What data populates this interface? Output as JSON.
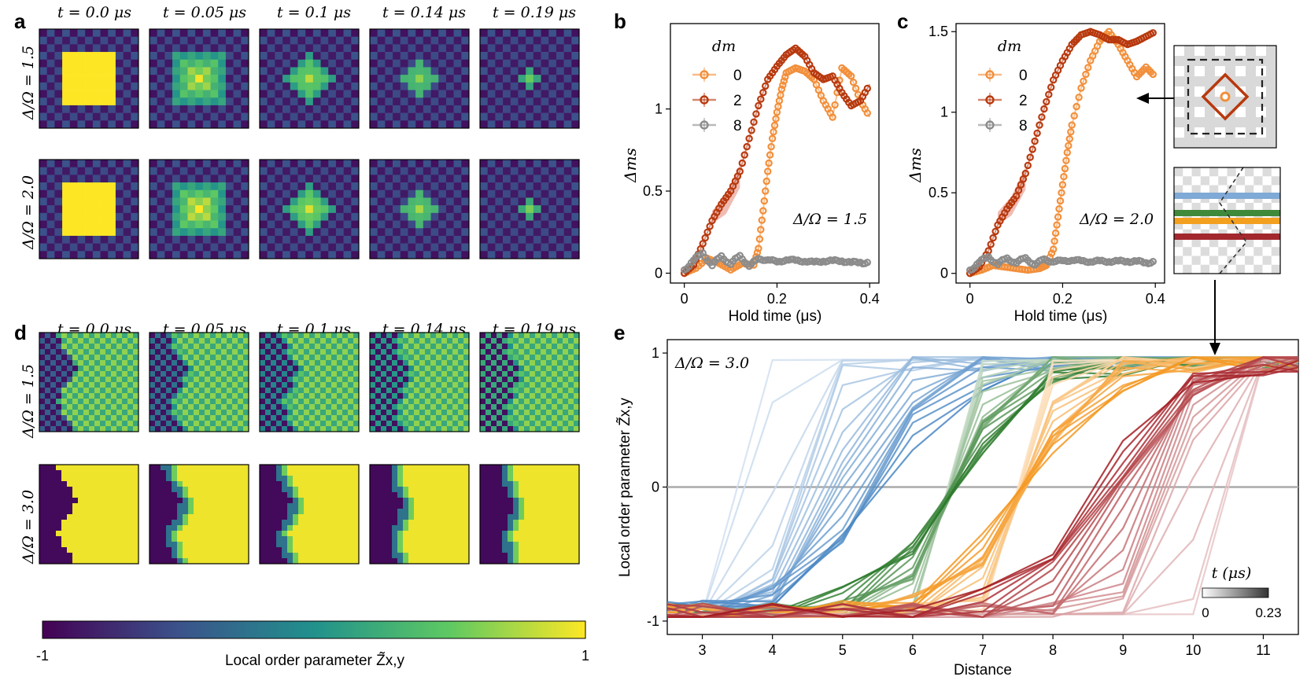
{
  "panel_labels": {
    "a": "a",
    "b": "b",
    "c": "c",
    "d": "d",
    "e": "e"
  },
  "time_labels": [
    "t = 0.0 μs",
    "t = 0.05 μs",
    "t = 0.1 μs",
    "t = 0.14 μs",
    "t = 0.19 μs"
  ],
  "panel_a": {
    "row_labels": [
      "Δ/Ω = 1.5",
      "Δ/Ω = 2.0"
    ]
  },
  "panel_d": {
    "row_labels": [
      "Δ/Ω = 1.5",
      "Δ/Ω = 3.0"
    ]
  },
  "colorbar": {
    "min_label": "-1",
    "max_label": "1",
    "label": "Local order parameter Z̃x,y",
    "colors": [
      "#440154",
      "#3b528b",
      "#21918c",
      "#5ec962",
      "#fde725"
    ]
  },
  "legend": {
    "title": "dm",
    "entries": [
      "0",
      "2",
      "8"
    ],
    "colors": [
      "#f28f3b",
      "#b8390e",
      "#8c8c8c"
    ]
  },
  "inset_arrow_colors": [
    "#7fa9d6",
    "#3f8a3a",
    "#f3a020",
    "#a2282e"
  ],
  "chart_data": [
    {
      "id": "b",
      "type": "line",
      "xlabel": "Hold time (μs)",
      "ylabel": "Δms",
      "xlim": [
        -0.03,
        0.42
      ],
      "ylim": [
        -0.06,
        1.52
      ],
      "xticks": [
        "0",
        "0.2",
        "0.4"
      ],
      "yticks": [
        "0",
        "0.5",
        "1"
      ],
      "annotation": "Δ/Ω = 1.5",
      "series": [
        {
          "name": "0",
          "x": [
            0,
            0.025,
            0.05,
            0.075,
            0.1,
            0.125,
            0.15,
            0.16,
            0.17,
            0.18,
            0.19,
            0.2,
            0.21,
            0.22,
            0.24,
            0.26,
            0.28,
            0.3,
            0.32,
            0.34,
            0.36,
            0.38,
            0.4
          ],
          "y": [
            0,
            0.03,
            0.09,
            0.06,
            0.02,
            0.06,
            0.05,
            0.15,
            0.38,
            0.62,
            0.82,
            0.98,
            1.12,
            1.22,
            1.25,
            1.23,
            1.18,
            1.05,
            0.95,
            1.25,
            1.2,
            1.05,
            0.95
          ]
        },
        {
          "name": "2",
          "x": [
            0,
            0.02,
            0.04,
            0.06,
            0.08,
            0.1,
            0.12,
            0.14,
            0.16,
            0.18,
            0.2,
            0.22,
            0.24,
            0.26,
            0.28,
            0.3,
            0.32,
            0.34,
            0.36,
            0.38,
            0.4
          ],
          "y": [
            0,
            0.05,
            0.18,
            0.32,
            0.42,
            0.5,
            0.62,
            0.82,
            1.02,
            1.18,
            1.26,
            1.33,
            1.37,
            1.32,
            1.22,
            1.18,
            1.2,
            1.1,
            1.02,
            1.05,
            1.15
          ]
        },
        {
          "name": "8",
          "x": [
            0,
            0.02,
            0.04,
            0.06,
            0.08,
            0.1,
            0.12,
            0.14,
            0.16,
            0.18,
            0.2,
            0.22,
            0.24,
            0.26,
            0.28,
            0.3,
            0.32,
            0.34,
            0.36,
            0.38,
            0.4
          ],
          "y": [
            0.02,
            0.08,
            0.12,
            0.05,
            0.1,
            0.06,
            0.1,
            0.05,
            0.08,
            0.09,
            0.06,
            0.09,
            0.07,
            0.08,
            0.06,
            0.08,
            0.07,
            0.08,
            0.06,
            0.07,
            0.06
          ]
        }
      ]
    },
    {
      "id": "c",
      "type": "line",
      "xlabel": "Hold time (μs)",
      "ylabel": "Δms",
      "xlim": [
        -0.03,
        0.42
      ],
      "ylim": [
        -0.06,
        1.55
      ],
      "xticks": [
        "0",
        "0.2",
        "0.4"
      ],
      "yticks": [
        "0",
        "0.5",
        "1",
        "1.5"
      ],
      "annotation": "Δ/Ω = 2.0",
      "series": [
        {
          "name": "0",
          "x": [
            0,
            0.025,
            0.05,
            0.075,
            0.1,
            0.125,
            0.15,
            0.165,
            0.18,
            0.19,
            0.2,
            0.21,
            0.22,
            0.24,
            0.26,
            0.28,
            0.3,
            0.32,
            0.34,
            0.36,
            0.38,
            0.4
          ],
          "y": [
            0,
            0.02,
            0.05,
            0.04,
            0.03,
            0.02,
            0.03,
            0.05,
            0.15,
            0.35,
            0.55,
            0.75,
            0.92,
            1.15,
            1.32,
            1.44,
            1.5,
            1.42,
            1.32,
            1.22,
            1.28,
            1.22
          ]
        },
        {
          "name": "2",
          "x": [
            0,
            0.02,
            0.04,
            0.06,
            0.08,
            0.1,
            0.12,
            0.14,
            0.16,
            0.18,
            0.2,
            0.22,
            0.24,
            0.26,
            0.28,
            0.3,
            0.32,
            0.34,
            0.36,
            0.38,
            0.4
          ],
          "y": [
            0,
            0.04,
            0.14,
            0.3,
            0.4,
            0.48,
            0.62,
            0.82,
            1.02,
            1.2,
            1.32,
            1.42,
            1.48,
            1.5,
            1.48,
            1.45,
            1.45,
            1.42,
            1.44,
            1.47,
            1.5
          ]
        },
        {
          "name": "8",
          "x": [
            0,
            0.02,
            0.04,
            0.06,
            0.08,
            0.1,
            0.12,
            0.14,
            0.16,
            0.18,
            0.2,
            0.22,
            0.24,
            0.26,
            0.28,
            0.3,
            0.32,
            0.34,
            0.36,
            0.38,
            0.4
          ],
          "y": [
            0.02,
            0.07,
            0.1,
            0.06,
            0.09,
            0.07,
            0.09,
            0.06,
            0.08,
            0.08,
            0.07,
            0.09,
            0.07,
            0.08,
            0.07,
            0.08,
            0.07,
            0.08,
            0.07,
            0.07,
            0.07
          ]
        }
      ]
    },
    {
      "id": "e",
      "type": "line",
      "xlabel": "Distance",
      "ylabel": "Local order parameter Z̃x,y",
      "xlim": [
        2.5,
        11.5
      ],
      "ylim": [
        -1.1,
        1.1
      ],
      "xticks": [
        "3",
        "4",
        "5",
        "6",
        "7",
        "8",
        "9",
        "10",
        "11"
      ],
      "yticks": [
        "-1",
        "0",
        "1"
      ],
      "annotation": "Δ/Ω = 3.0",
      "time_range_label": "t (μs)",
      "time_min_label": "0",
      "time_max_label": "0.23",
      "series": [
        {
          "name": "blue",
          "color": "#4a87c4",
          "initial_boundary": 3.5,
          "final_boundary": 5.6
        },
        {
          "name": "green",
          "color": "#2a7a2a",
          "initial_boundary": 6.6,
          "final_boundary": 6.6
        },
        {
          "name": "orange",
          "color": "#f5961e",
          "initial_boundary": 7.6,
          "final_boundary": 7.6
        },
        {
          "name": "red",
          "color": "#a31c22",
          "initial_boundary": 10.6,
          "final_boundary": 8.6
        }
      ]
    }
  ]
}
